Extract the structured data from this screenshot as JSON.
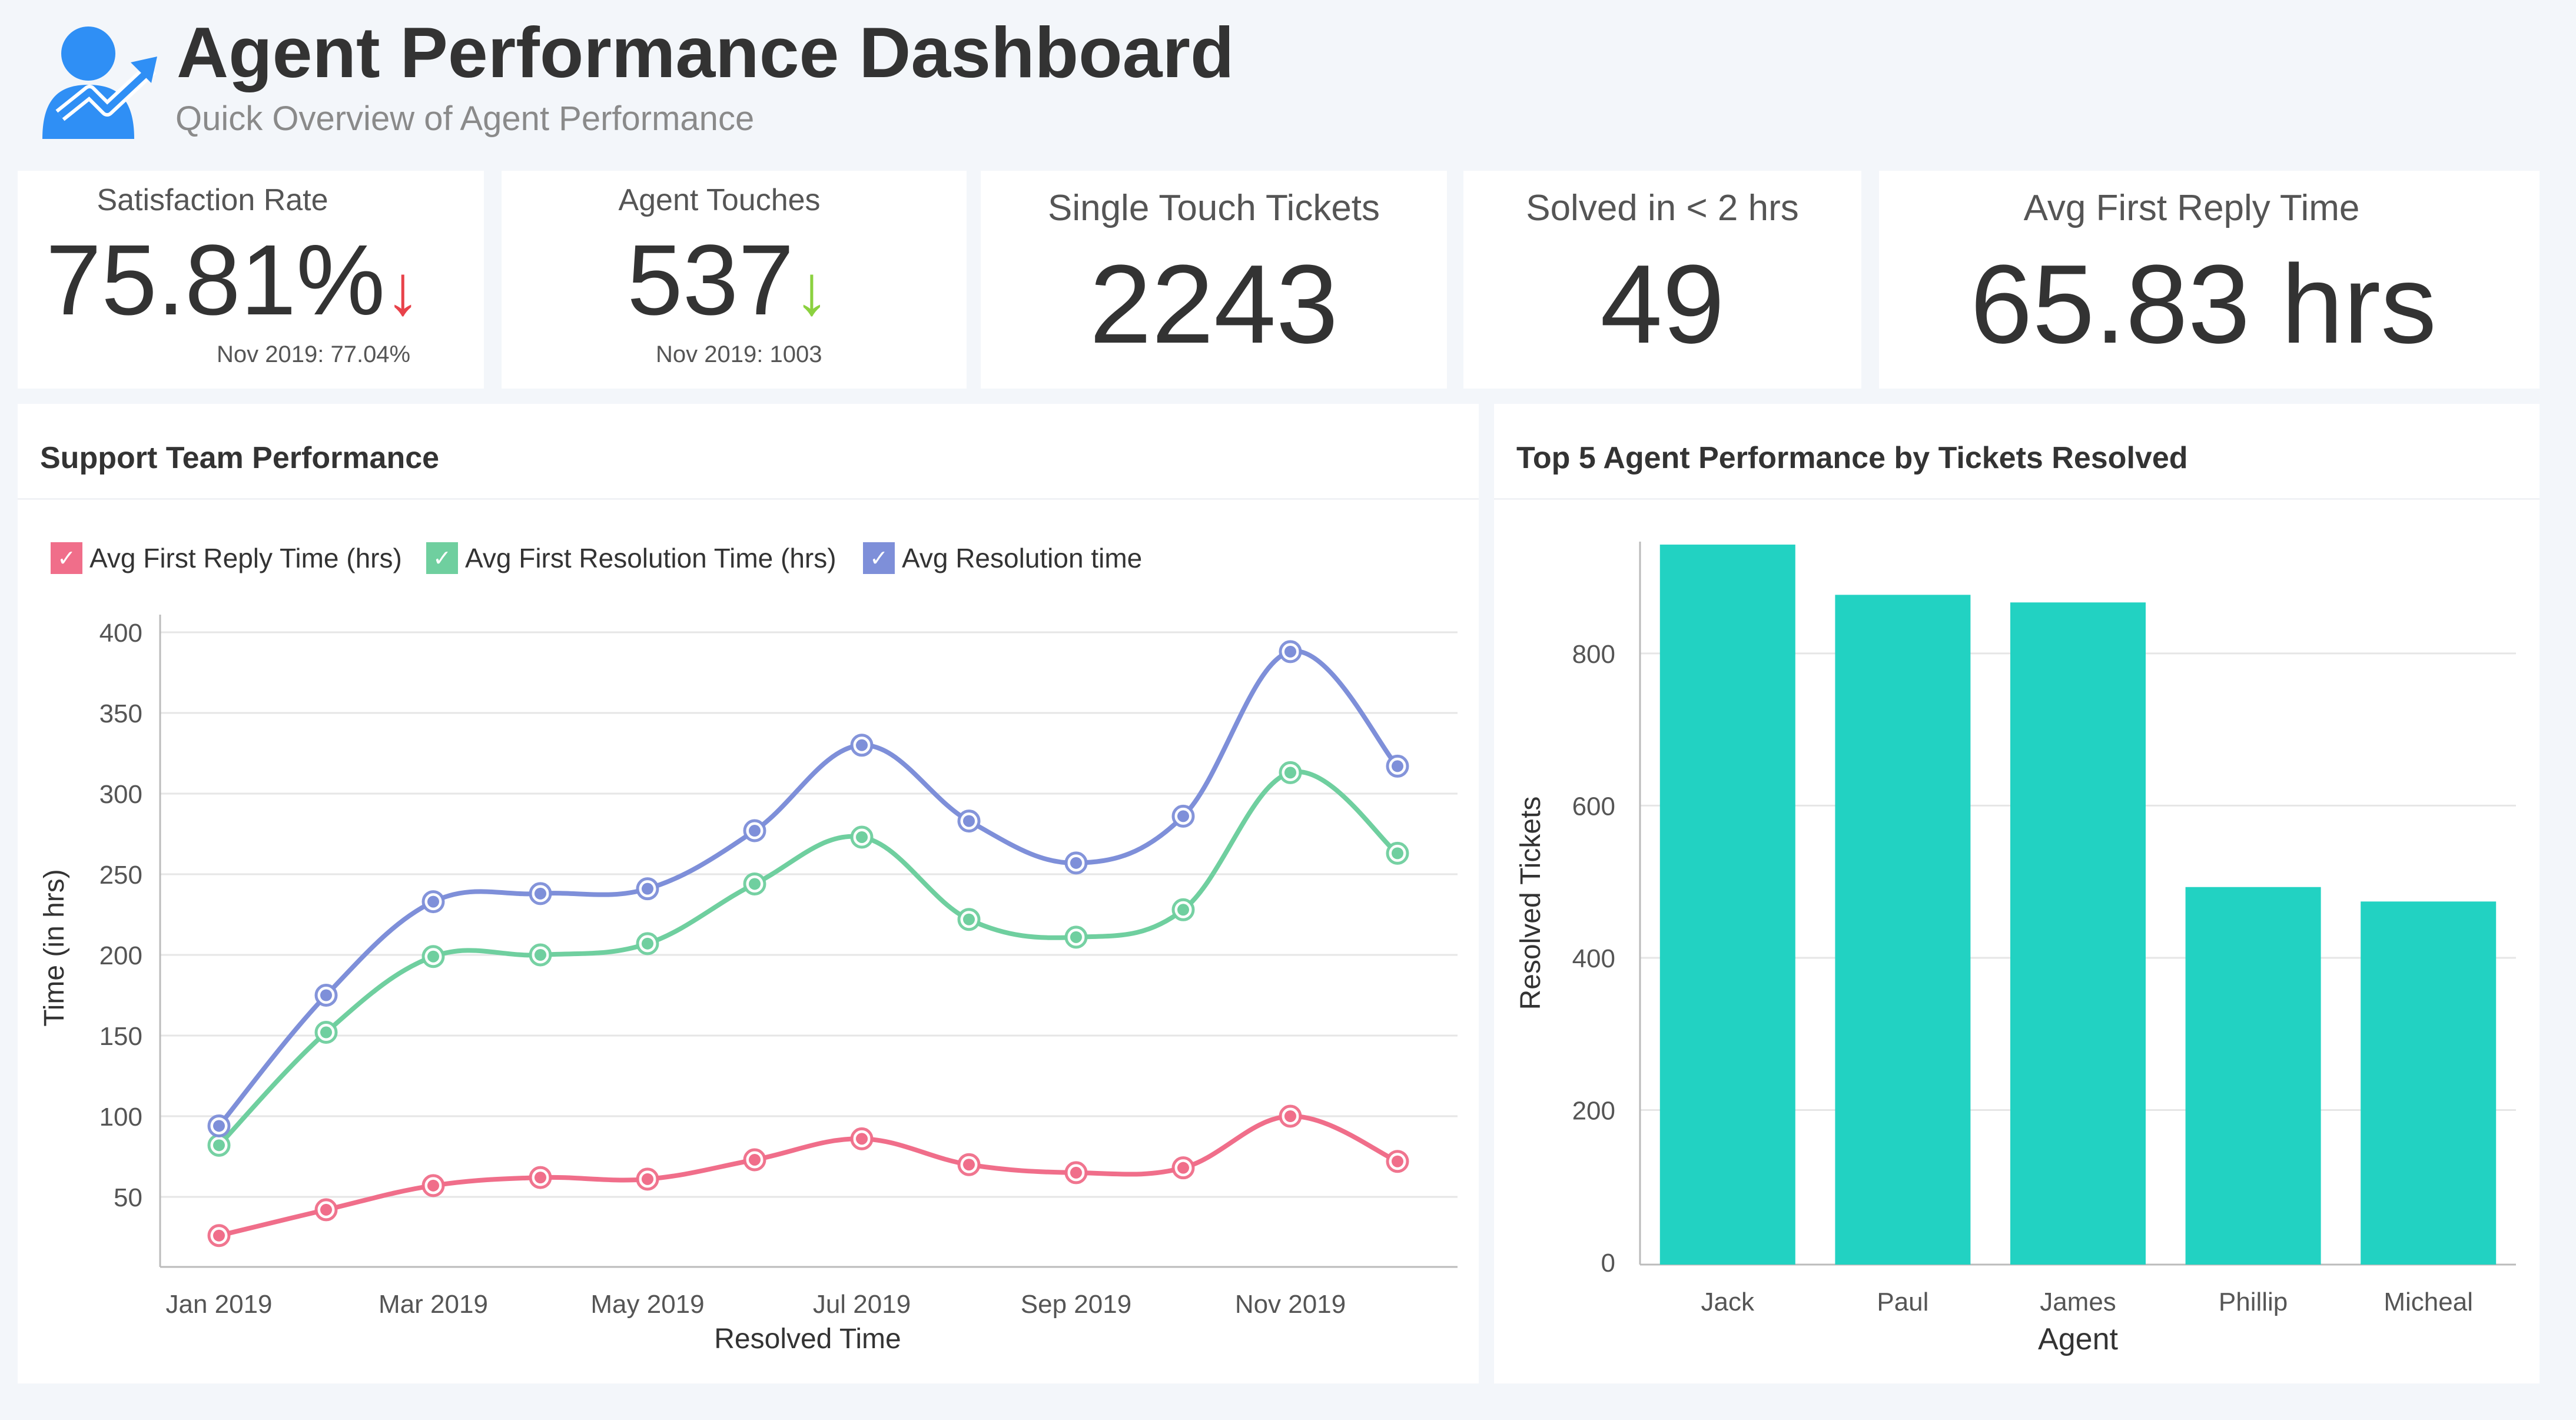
{
  "header": {
    "title": "Agent Performance Dashboard",
    "subtitle": "Quick Overview of Agent Performance",
    "logo_icon": "user-growth-icon"
  },
  "kpis": [
    {
      "label": "Satisfaction Rate",
      "value": "75.81%",
      "trend": "down",
      "trend_color": "#e8424a",
      "comparison": "Nov 2019: 77.04%"
    },
    {
      "label": "Agent Touches",
      "value": "537",
      "trend": "down",
      "trend_color": "#8bd13f",
      "comparison": "Nov 2019: 1003"
    },
    {
      "label": "Single Touch Tickets",
      "value": "2243"
    },
    {
      "label": "Solved in < 2 hrs",
      "value": "49"
    },
    {
      "label": "Avg First Reply Time",
      "value": "65.83 hrs"
    }
  ],
  "icons": {
    "arrow_down": "↓",
    "check": "✓"
  },
  "chart_data": [
    {
      "type": "line",
      "title": "Support Team Performance",
      "xlabel": "Resolved Time",
      "ylabel": "Time (in hrs)",
      "x": [
        "Jan 2019",
        "Feb 2019",
        "Mar 2019",
        "Apr 2019",
        "May 2019",
        "Jun 2019",
        "Jul 2019",
        "Aug 2019",
        "Sep 2019",
        "Oct 2019",
        "Nov 2019",
        "Dec 2019"
      ],
      "x_tick_labels": [
        "Jan 2019",
        "Mar 2019",
        "May 2019",
        "Jul 2019",
        "Sep 2019",
        "Nov 2019"
      ],
      "ylim": [
        0,
        400
      ],
      "yticks": [
        50,
        100,
        150,
        200,
        250,
        300,
        350,
        400
      ],
      "grid": true,
      "legend_position": "top-left",
      "series": [
        {
          "name": "Avg First Reply Time (hrs)",
          "color": "#f06e8a",
          "values": [
            26,
            42,
            57,
            62,
            61,
            73,
            86,
            70,
            65,
            68,
            100,
            72
          ]
        },
        {
          "name": "Avg First Resolution Time (hrs)",
          "color": "#6fcf9f",
          "values": [
            82,
            152,
            199,
            200,
            207,
            244,
            273,
            222,
            211,
            228,
            313,
            263
          ]
        },
        {
          "name": "Avg Resolution time",
          "color": "#7e8fd9",
          "values": [
            94,
            175,
            233,
            238,
            241,
            277,
            330,
            283,
            257,
            286,
            388,
            317
          ]
        }
      ]
    },
    {
      "type": "bar",
      "title": "Top 5 Agent Performance by Tickets Resolved",
      "xlabel": "Agent",
      "ylabel": "Resolved Tickets",
      "categories": [
        "Jack",
        "Paul",
        "James",
        "Phillip",
        "Micheal"
      ],
      "values": [
        943,
        877,
        867,
        493,
        474
      ],
      "ylim": [
        0,
        950
      ],
      "yticks": [
        0,
        200,
        400,
        600,
        800
      ],
      "grid": true,
      "color": "#22d2c2"
    }
  ]
}
